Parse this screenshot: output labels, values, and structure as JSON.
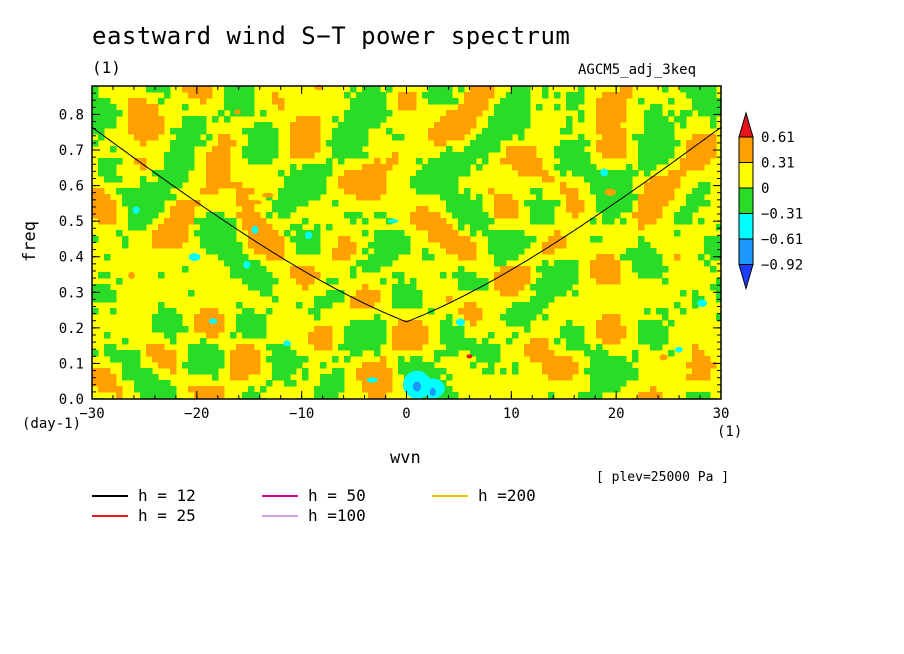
{
  "chart_data": {
    "type": "heatmap",
    "title": "eastward wind S−T power spectrum",
    "title_unit": "(1)",
    "run_label": "AGCM5_adj_3keq",
    "xlabel": "wvn",
    "x_unit": "(1)",
    "ylabel": "freq",
    "y_unit": "(day-1)",
    "xlim": [
      -30,
      30
    ],
    "ylim": [
      0,
      0.88
    ],
    "x_ticks": [
      -30,
      -20,
      -10,
      0,
      10,
      20,
      30
    ],
    "x_tick_labels": [
      "−30",
      "−20",
      "−10",
      "0",
      "10",
      "20",
      "30"
    ],
    "y_ticks": [
      0.0,
      0.1,
      0.2,
      0.3,
      0.4,
      0.5,
      0.6,
      0.7,
      0.8
    ],
    "y_tick_labels": [
      "0.0",
      "0.1",
      "0.2",
      "0.3",
      "0.4",
      "0.5",
      "0.6",
      "0.7",
      "0.8"
    ],
    "colorbar": {
      "levels": [
        0.61,
        0.31,
        0,
        -0.31,
        -0.61,
        -0.92
      ],
      "level_labels": [
        "0.61",
        "0.31",
        "0",
        "−0.31",
        "−0.61",
        "−0.92"
      ],
      "colors": [
        "#e8141c",
        "#ff9f00",
        "#ffff00",
        "#28dc28",
        "#00ffff",
        "#1e96ff",
        "#1e3cff"
      ]
    },
    "dispersion_curves": [
      {
        "label": "h = 12",
        "h": 12,
        "color": "#000000"
      },
      {
        "label": "h = 25",
        "h": 25,
        "color": "#e8141c"
      },
      {
        "label": "h = 50",
        "h": 50,
        "color": "#e000b0"
      },
      {
        "label": "h =100",
        "h": 100,
        "color": "#d8a0e8"
      },
      {
        "label": "h =200",
        "h": 200,
        "color": "#f0c800"
      }
    ],
    "note": "[ plev=25000 Pa ]"
  }
}
